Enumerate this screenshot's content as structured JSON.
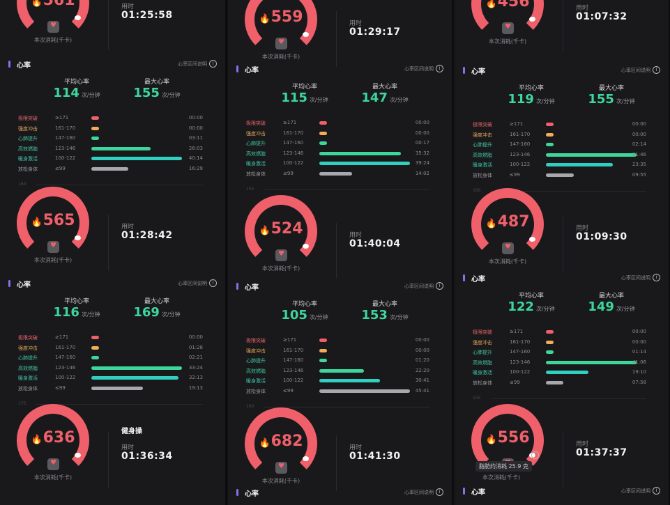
{
  "common": {
    "heart_rate_title": "心率",
    "zone_help": "心率区间说明",
    "avg_label": "平均心率",
    "max_label": "最大心率",
    "bpm_unit": "次/分钟",
    "calorie_label": "本次消耗(千卡)",
    "duration_label": "用时",
    "info_glyph": "i",
    "flame_glyph": "🔥",
    "zone_names": [
      "极限突破",
      "强度冲击",
      "心肺提升",
      "高效燃脂",
      "暖身激活",
      "放松身体"
    ],
    "zone_ranges": [
      "≥171",
      "161-170",
      "147-160",
      "123-146",
      "100-122",
      "≤99"
    ],
    "zone_colors": [
      "#f0606a",
      "#f2ad55",
      "#3dd69b",
      "#3dd69b",
      "#2fd0c0",
      "#a8a8ac"
    ],
    "zone_name_colors": [
      "#e5626a",
      "#e0a559",
      "#3fc49a",
      "#3fc49a",
      "#3fc4aa",
      "#9a9a9e"
    ]
  },
  "columns": [
    {
      "panels": [
        {
          "calories": "561",
          "duration": "01:25:58",
          "avg_hr": "114",
          "max_hr": "155",
          "zones": [
            "00:00",
            "00:00",
            "03:11",
            "26:03",
            "40:14",
            "16:29"
          ],
          "zone_fill": [
            0,
            0,
            0.08,
            0.65,
            1.0,
            0.41
          ],
          "chart_axis": "160"
        },
        {
          "calories": "565",
          "duration": "01:28:42",
          "avg_hr": "116",
          "max_hr": "169",
          "zones": [
            "00:00",
            "01:28",
            "02:21",
            "33:24",
            "32:13",
            "19:13"
          ],
          "zone_fill": [
            0,
            0.04,
            0.07,
            1.0,
            0.96,
            0.57
          ],
          "chart_axis": "175"
        },
        {
          "calories": "636",
          "activity": "健身操",
          "duration": "01:36:34"
        }
      ]
    },
    {
      "panels": [
        {
          "calories": "559",
          "duration": "01:29:17",
          "avg_hr": "115",
          "max_hr": "147",
          "zones": [
            "00:00",
            "00:00",
            "00:17",
            "35:32",
            "39:24",
            "14:02"
          ],
          "zone_fill": [
            0,
            0,
            0.01,
            0.9,
            1.0,
            0.36
          ],
          "chart_axis": "155"
        },
        {
          "calories": "524",
          "duration": "01:40:04",
          "avg_hr": "105",
          "max_hr": "153",
          "zones": [
            "00:00",
            "00:00",
            "01:20",
            "22:20",
            "30:41",
            "45:41"
          ],
          "zone_fill": [
            0,
            0,
            0.03,
            0.49,
            0.67,
            1.0
          ],
          "chart_axis": "160"
        },
        {
          "calories": "682",
          "duration": "01:41:30"
        }
      ]
    },
    {
      "panels": [
        {
          "calories": "456",
          "duration": "01:07:32",
          "avg_hr": "119",
          "max_hr": "155",
          "zones": [
            "00:00",
            "00:00",
            "02:14",
            "31:46",
            "23:35",
            "09:55"
          ],
          "zone_fill": [
            0,
            0,
            0.07,
            1.0,
            0.74,
            0.31
          ],
          "chart_axis": "160"
        },
        {
          "calories": "487",
          "duration": "01:09:30",
          "avg_hr": "122",
          "max_hr": "149",
          "zones": [
            "00:00",
            "00:00",
            "01:14",
            "41:06",
            "19:10",
            "07:58"
          ],
          "zone_fill": [
            0,
            0,
            0.03,
            1.0,
            0.47,
            0.19
          ],
          "chart_axis": "155"
        },
        {
          "calories": "556",
          "duration": "01:37:37",
          "fat_burn": "脂肪约消耗 25.9 克"
        }
      ]
    }
  ]
}
